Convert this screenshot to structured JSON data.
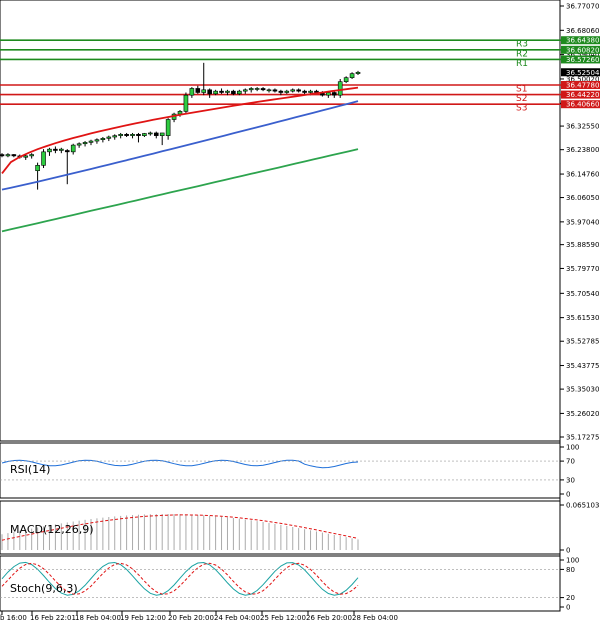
{
  "chart_data": {
    "type": "candlestick",
    "price_axis": {
      "ticks": [
        "36.77070",
        "36.68060",
        "36.59040",
        "36.50020",
        "36.41010",
        "36.32550",
        "36.23800",
        "36.14760",
        "36.06050",
        "35.97040",
        "35.88590",
        "35.79770",
        "35.70540",
        "35.61530",
        "35.52785",
        "35.43775",
        "35.35030",
        "35.26020",
        "35.17275"
      ]
    },
    "current_price": "36.52504",
    "levels": [
      {
        "name": "R3",
        "value": "36.64380",
        "color": "#1e8a1e"
      },
      {
        "name": "R2",
        "value": "36.60820",
        "color": "#1e8a1e"
      },
      {
        "name": "R1",
        "value": "36.57260",
        "color": "#1e8a1e"
      },
      {
        "name": "S1",
        "value": "36.47780",
        "color": "#d01818"
      },
      {
        "name": "S2",
        "value": "36.44220",
        "color": "#d01818"
      },
      {
        "name": "S3",
        "value": "36.40660",
        "color": "#d01818"
      }
    ],
    "time_axis": [
      "b 16:00",
      "16 Feb 22:01",
      "18 Feb 04:00",
      "19 Feb 12:00",
      "20 Feb 20:00",
      "24 Feb 04:00",
      "25 Feb 12:00",
      "26 Feb 20:00",
      "28 Feb 04:00"
    ],
    "candles": [
      [
        36.22,
        36.225,
        36.21,
        36.215
      ],
      [
        36.215,
        36.225,
        36.21,
        36.22
      ],
      [
        36.22,
        36.222,
        36.21,
        36.215
      ],
      [
        36.215,
        36.22,
        36.205,
        36.21
      ],
      [
        36.21,
        36.22,
        36.2,
        36.215
      ],
      [
        36.215,
        36.225,
        36.205,
        36.22
      ],
      [
        36.16,
        36.19,
        36.09,
        36.18
      ],
      [
        36.18,
        36.24,
        36.17,
        36.23
      ],
      [
        36.23,
        36.245,
        36.215,
        36.24
      ],
      [
        36.24,
        36.25,
        36.225,
        36.235
      ],
      [
        36.235,
        36.245,
        36.225,
        36.24
      ],
      [
        36.235,
        36.24,
        36.11,
        36.23
      ],
      [
        36.23,
        36.26,
        36.22,
        36.255
      ],
      [
        36.255,
        36.265,
        36.245,
        36.26
      ],
      [
        36.26,
        36.27,
        36.25,
        36.265
      ],
      [
        36.265,
        36.275,
        36.255,
        36.27
      ],
      [
        36.27,
        36.28,
        36.26,
        36.275
      ],
      [
        36.275,
        36.285,
        36.265,
        36.28
      ],
      [
        36.28,
        36.29,
        36.27,
        36.285
      ],
      [
        36.285,
        36.295,
        36.275,
        36.29
      ],
      [
        36.29,
        36.3,
        36.28,
        36.295
      ],
      [
        36.295,
        36.3,
        36.285,
        36.29
      ],
      [
        36.29,
        36.3,
        36.28,
        36.295
      ],
      [
        36.295,
        36.3,
        36.265,
        36.29
      ],
      [
        36.29,
        36.3,
        36.285,
        36.298
      ],
      [
        36.298,
        36.305,
        36.29,
        36.3
      ],
      [
        36.3,
        36.305,
        36.28,
        36.29
      ],
      [
        36.29,
        36.3,
        36.255,
        36.3
      ],
      [
        36.29,
        36.355,
        36.275,
        36.35
      ],
      [
        36.35,
        36.375,
        36.34,
        36.37
      ],
      [
        36.37,
        36.385,
        36.36,
        36.38
      ],
      [
        36.38,
        36.45,
        36.37,
        36.44
      ],
      [
        36.44,
        36.47,
        36.43,
        36.465
      ],
      [
        36.465,
        36.475,
        36.445,
        36.45
      ],
      [
        36.45,
        36.56,
        36.44,
        36.46
      ],
      [
        36.46,
        36.465,
        36.43,
        36.445
      ],
      [
        36.445,
        36.46,
        36.44,
        36.455
      ],
      [
        36.455,
        36.465,
        36.445,
        36.45
      ],
      [
        36.45,
        36.46,
        36.44,
        36.455
      ],
      [
        36.455,
        36.46,
        36.44,
        36.445
      ],
      [
        36.445,
        36.46,
        36.44,
        36.455
      ],
      [
        36.455,
        36.465,
        36.445,
        36.46
      ],
      [
        36.46,
        36.47,
        36.45,
        36.465
      ],
      [
        36.465,
        36.47,
        36.455,
        36.465
      ],
      [
        36.465,
        36.47,
        36.455,
        36.46
      ],
      [
        36.46,
        36.465,
        36.45,
        36.46
      ],
      [
        36.46,
        36.465,
        36.45,
        36.455
      ],
      [
        36.455,
        36.46,
        36.44,
        36.45
      ],
      [
        36.45,
        36.46,
        36.445,
        36.455
      ],
      [
        36.455,
        36.465,
        36.45,
        36.46
      ],
      [
        36.46,
        36.465,
        36.45,
        36.455
      ],
      [
        36.455,
        36.46,
        36.44,
        36.45
      ],
      [
        36.45,
        36.46,
        36.44,
        36.455
      ],
      [
        36.455,
        36.46,
        36.445,
        36.45
      ],
      [
        36.45,
        36.455,
        36.435,
        36.44
      ],
      [
        36.44,
        36.455,
        36.43,
        36.45
      ],
      [
        36.45,
        36.455,
        36.43,
        36.44
      ],
      [
        36.44,
        36.5,
        36.43,
        36.49
      ],
      [
        36.49,
        36.51,
        36.485,
        36.505
      ],
      [
        36.505,
        36.525,
        36.5,
        36.52
      ],
      [
        36.52,
        36.53,
        36.515,
        36.525
      ]
    ],
    "moving_averages": [
      {
        "color": "#e01414",
        "start": 36.15,
        "end": 36.468,
        "curve": 0.55
      },
      {
        "color": "#3a5fcd",
        "start": 36.09,
        "end": 36.418,
        "curve": 1.05
      },
      {
        "color": "#2da44e",
        "start": 35.935,
        "end": 36.24,
        "curve": 1.0
      }
    ],
    "indicators": [
      {
        "name": "RSI(14)",
        "ticks": [
          "100",
          "70",
          "30",
          "0"
        ]
      },
      {
        "name": "MACD(12,26,9)",
        "ticks": [
          "0.065103",
          "0"
        ]
      },
      {
        "name": "Stoch(9,6,3)",
        "ticks": [
          "100",
          "80",
          "20",
          "0"
        ]
      }
    ]
  }
}
